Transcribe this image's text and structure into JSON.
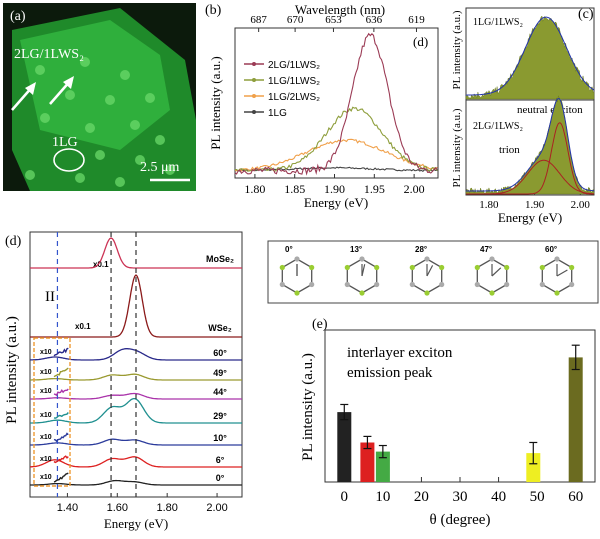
{
  "panel_a": {
    "label": "(a)",
    "text_2lg": "2LG/1LWS₂",
    "text_1lg": "1LG",
    "scalebar": "2.5 μm"
  },
  "panel_b": {
    "label": "(b)",
    "top_axis_title": "Wavelength (nm)",
    "top_ticks": [
      "687",
      "670",
      "653",
      "636",
      "619"
    ],
    "top_tick_wavelengths": [
      687,
      670,
      653,
      636,
      619
    ],
    "sublabel_d": "(d)",
    "ylabel": "PL intensity (a.u.)",
    "xlabel": "Energy (eV)",
    "x_ticks": [
      "1.80",
      "1.85",
      "1.90",
      "1.95",
      "2.00"
    ],
    "legend": [
      "2LG/1LWS₂",
      "1LG/1LWS₂",
      "1LG/2LWS₂",
      "1LG"
    ],
    "colors": [
      "#9b3b55",
      "#8e9e3c",
      "#f0a04a",
      "#444444"
    ]
  },
  "panel_c": {
    "label": "(c)",
    "top_title": "1LG/1LWS₂",
    "bottom_title": "2LG/1LWS₂",
    "neutral": "neutral exciton",
    "trion": "trion",
    "ylabel": "PL intensity (a.u.)",
    "xlabel": "Energy (eV)",
    "x_ticks": [
      "1.80",
      "1.90",
      "2.00"
    ]
  },
  "panel_d": {
    "label": "(d)",
    "ylabel": "PL intensity (a.u.)",
    "xlabel": "Energy (eV)",
    "x_ticks": [
      "1.40",
      "1.60",
      "1.80",
      "2.00"
    ],
    "marker_II": "II",
    "x01_a": "x0.1",
    "x01_b": "x0.1",
    "x10": "x10",
    "traces": [
      {
        "name": "MoSe₂",
        "color": "#cc3355"
      },
      {
        "name": "WSe₂",
        "color": "#8b1a1a"
      },
      {
        "name": "60°",
        "color": "#2a2a8a"
      },
      {
        "name": "49°",
        "color": "#9a9a30"
      },
      {
        "name": "44°",
        "color": "#aa33aa"
      },
      {
        "name": "29°",
        "color": "#209090"
      },
      {
        "name": "10°",
        "color": "#2c3c9c"
      },
      {
        "name": "6°",
        "color": "#dd2020"
      },
      {
        "name": "0°",
        "color": "#222222"
      }
    ]
  },
  "panel_structures": {
    "angles": [
      "0°",
      "13°",
      "28°",
      "47°",
      "60°"
    ]
  },
  "panel_e": {
    "label": "(e)",
    "annotation_line1": "interlayer exciton",
    "annotation_line2": "emission peak",
    "ylabel": "PL intensity (a.u.)",
    "xlabel": "θ (degree)",
    "x_ticks": [
      "0",
      "10",
      "20",
      "30",
      "40",
      "50",
      "60"
    ]
  },
  "chart_data": [
    {
      "type": "line",
      "panel": "b",
      "xlabel": "Energy (eV)",
      "ylabel": "PL intensity (a.u.)",
      "xlim": [
        1.775,
        2.03
      ],
      "ylim": [
        0,
        1.0
      ],
      "grid": false,
      "legend": "top-left",
      "series": [
        {
          "name": "2LG/1LWS₂",
          "peak_energy": 1.945,
          "peak_height": 0.98,
          "width": 0.022
        },
        {
          "name": "1LG/1LWS₂",
          "peak_energy": 1.925,
          "peak_height": 0.45,
          "width": 0.035
        },
        {
          "name": "1LG/2LWS₂",
          "peak_energy": 1.915,
          "peak_height": 0.22,
          "width": 0.05
        },
        {
          "name": "1LG",
          "peak_energy": 1.9,
          "peak_height": 0.02,
          "width": 0.05
        }
      ]
    },
    {
      "type": "line",
      "panel": "c",
      "xlabel": "Energy (eV)",
      "ylabel": "PL intensity (a.u.)",
      "xlim": [
        1.75,
        2.03
      ],
      "series": [
        {
          "name": "1LG/1LWS₂",
          "peak_energy": 1.925,
          "width": 0.045
        },
        {
          "name": "neutral exciton",
          "peak_energy": 1.955,
          "width": 0.018
        },
        {
          "name": "trion",
          "peak_energy": 1.92,
          "width": 0.035
        }
      ]
    },
    {
      "type": "line",
      "panel": "d",
      "xlabel": "Energy (eV)",
      "ylabel": "PL intensity (a.u.)",
      "xlim": [
        1.25,
        2.1
      ],
      "reference_energies": [
        1.36,
        1.575,
        1.675
      ],
      "series": [
        {
          "name": "MoSe₂",
          "peaks": [
            [
              1.575,
              1.0
            ]
          ]
        },
        {
          "name": "WSe₂",
          "peaks": [
            [
              1.675,
              1.0
            ]
          ]
        },
        {
          "name": "60°",
          "peaks": [
            [
              1.35,
              0.15
            ],
            [
              1.62,
              0.45
            ],
            [
              1.68,
              0.35
            ]
          ]
        },
        {
          "name": "49°",
          "peaks": [
            [
              1.35,
              0.1
            ],
            [
              1.58,
              0.35
            ],
            [
              1.67,
              0.4
            ]
          ]
        },
        {
          "name": "44°",
          "peaks": [
            [
              1.36,
              0.1
            ],
            [
              1.58,
              0.3
            ],
            [
              1.67,
              0.45
            ]
          ]
        },
        {
          "name": "29°",
          "peaks": [
            [
              1.36,
              0.1
            ],
            [
              1.58,
              0.55
            ],
            [
              1.67,
              0.85
            ]
          ]
        },
        {
          "name": "10°",
          "peaks": [
            [
              1.36,
              0.15
            ],
            [
              1.58,
              0.4
            ],
            [
              1.67,
              0.35
            ]
          ]
        },
        {
          "name": "6°",
          "peaks": [
            [
              1.35,
              0.4
            ],
            [
              1.58,
              0.45
            ],
            [
              1.67,
              0.55
            ]
          ]
        },
        {
          "name": "0°",
          "peaks": [
            [
              1.36,
              0.12
            ],
            [
              1.59,
              0.35
            ],
            [
              1.67,
              0.25
            ]
          ]
        }
      ]
    },
    {
      "type": "bar",
      "panel": "e",
      "xlabel": "θ (degree)",
      "ylabel": "PL intensity (a.u.)",
      "xlim": [
        -5,
        65
      ],
      "ylim": [
        0,
        1.0
      ],
      "categories": [
        0,
        6,
        10,
        49,
        60
      ],
      "values": [
        0.46,
        0.26,
        0.2,
        0.19,
        0.82
      ],
      "errors": [
        0.05,
        0.04,
        0.04,
        0.07,
        0.08
      ],
      "colors": [
        "#222222",
        "#dd2020",
        "#44aa44",
        "#eeee22",
        "#6b6b20"
      ]
    }
  ]
}
